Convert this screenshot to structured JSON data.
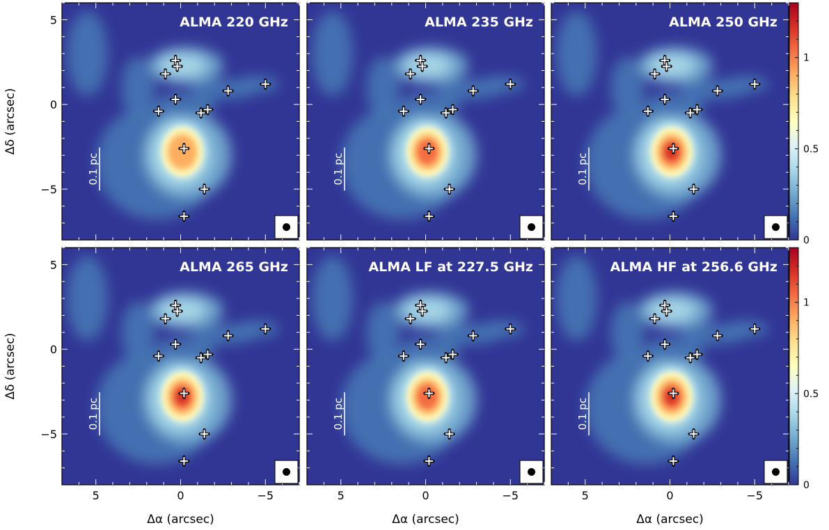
{
  "chart_data": {
    "type": "heatmap",
    "xlabel": "Δα (arcsec)",
    "ylabel": "Δδ (arcsec)",
    "xlim": [
      7,
      -7
    ],
    "ylim": [
      -8,
      6
    ],
    "x_ticks": [
      5,
      0,
      -5
    ],
    "x_tick_labels": [
      "5",
      "0",
      "−5"
    ],
    "y_ticks": [
      5,
      0,
      -5
    ],
    "y_tick_labels": [
      "5",
      "0",
      "−5"
    ],
    "colorbar": {
      "range": [
        0,
        1.3
      ],
      "ticks": [
        0,
        0.5,
        1
      ],
      "tick_labels": [
        "0",
        "0.5",
        "1"
      ],
      "colormap": [
        "#313695",
        "#4575b4",
        "#74add1",
        "#abd9e9",
        "#e0f3f8",
        "#ffffbf",
        "#fee090",
        "#fdae61",
        "#f46d43",
        "#d73027",
        "#a50026"
      ]
    },
    "scale_bar_label": "0.1 pc",
    "sources": [
      {
        "x": 0.3,
        "y": 2.6
      },
      {
        "x": 0.2,
        "y": 2.25
      },
      {
        "x": 0.9,
        "y": 1.8
      },
      {
        "x": -2.8,
        "y": 0.8
      },
      {
        "x": -5.0,
        "y": 1.2
      },
      {
        "x": 0.3,
        "y": 0.3
      },
      {
        "x": 1.3,
        "y": -0.4
      },
      {
        "x": -1.2,
        "y": -0.5
      },
      {
        "x": -1.6,
        "y": -0.3
      },
      {
        "x": -0.2,
        "y": -2.6
      },
      {
        "x": -1.4,
        "y": -5.0
      },
      {
        "x": -0.2,
        "y": -6.6
      }
    ],
    "panels": [
      {
        "title": "ALMA 220 GHz",
        "peak": 1.0
      },
      {
        "title": "ALMA 235 GHz",
        "peak": 1.05
      },
      {
        "title": "ALMA 250 GHz",
        "peak": 1.35
      },
      {
        "title": "ALMA 265 GHz",
        "peak": 1.45
      },
      {
        "title": "ALMA LF at 227.5 GHz",
        "peak": 1.05
      },
      {
        "title": "ALMA HF at 256.6 GHz",
        "peak": 1.4
      }
    ]
  }
}
